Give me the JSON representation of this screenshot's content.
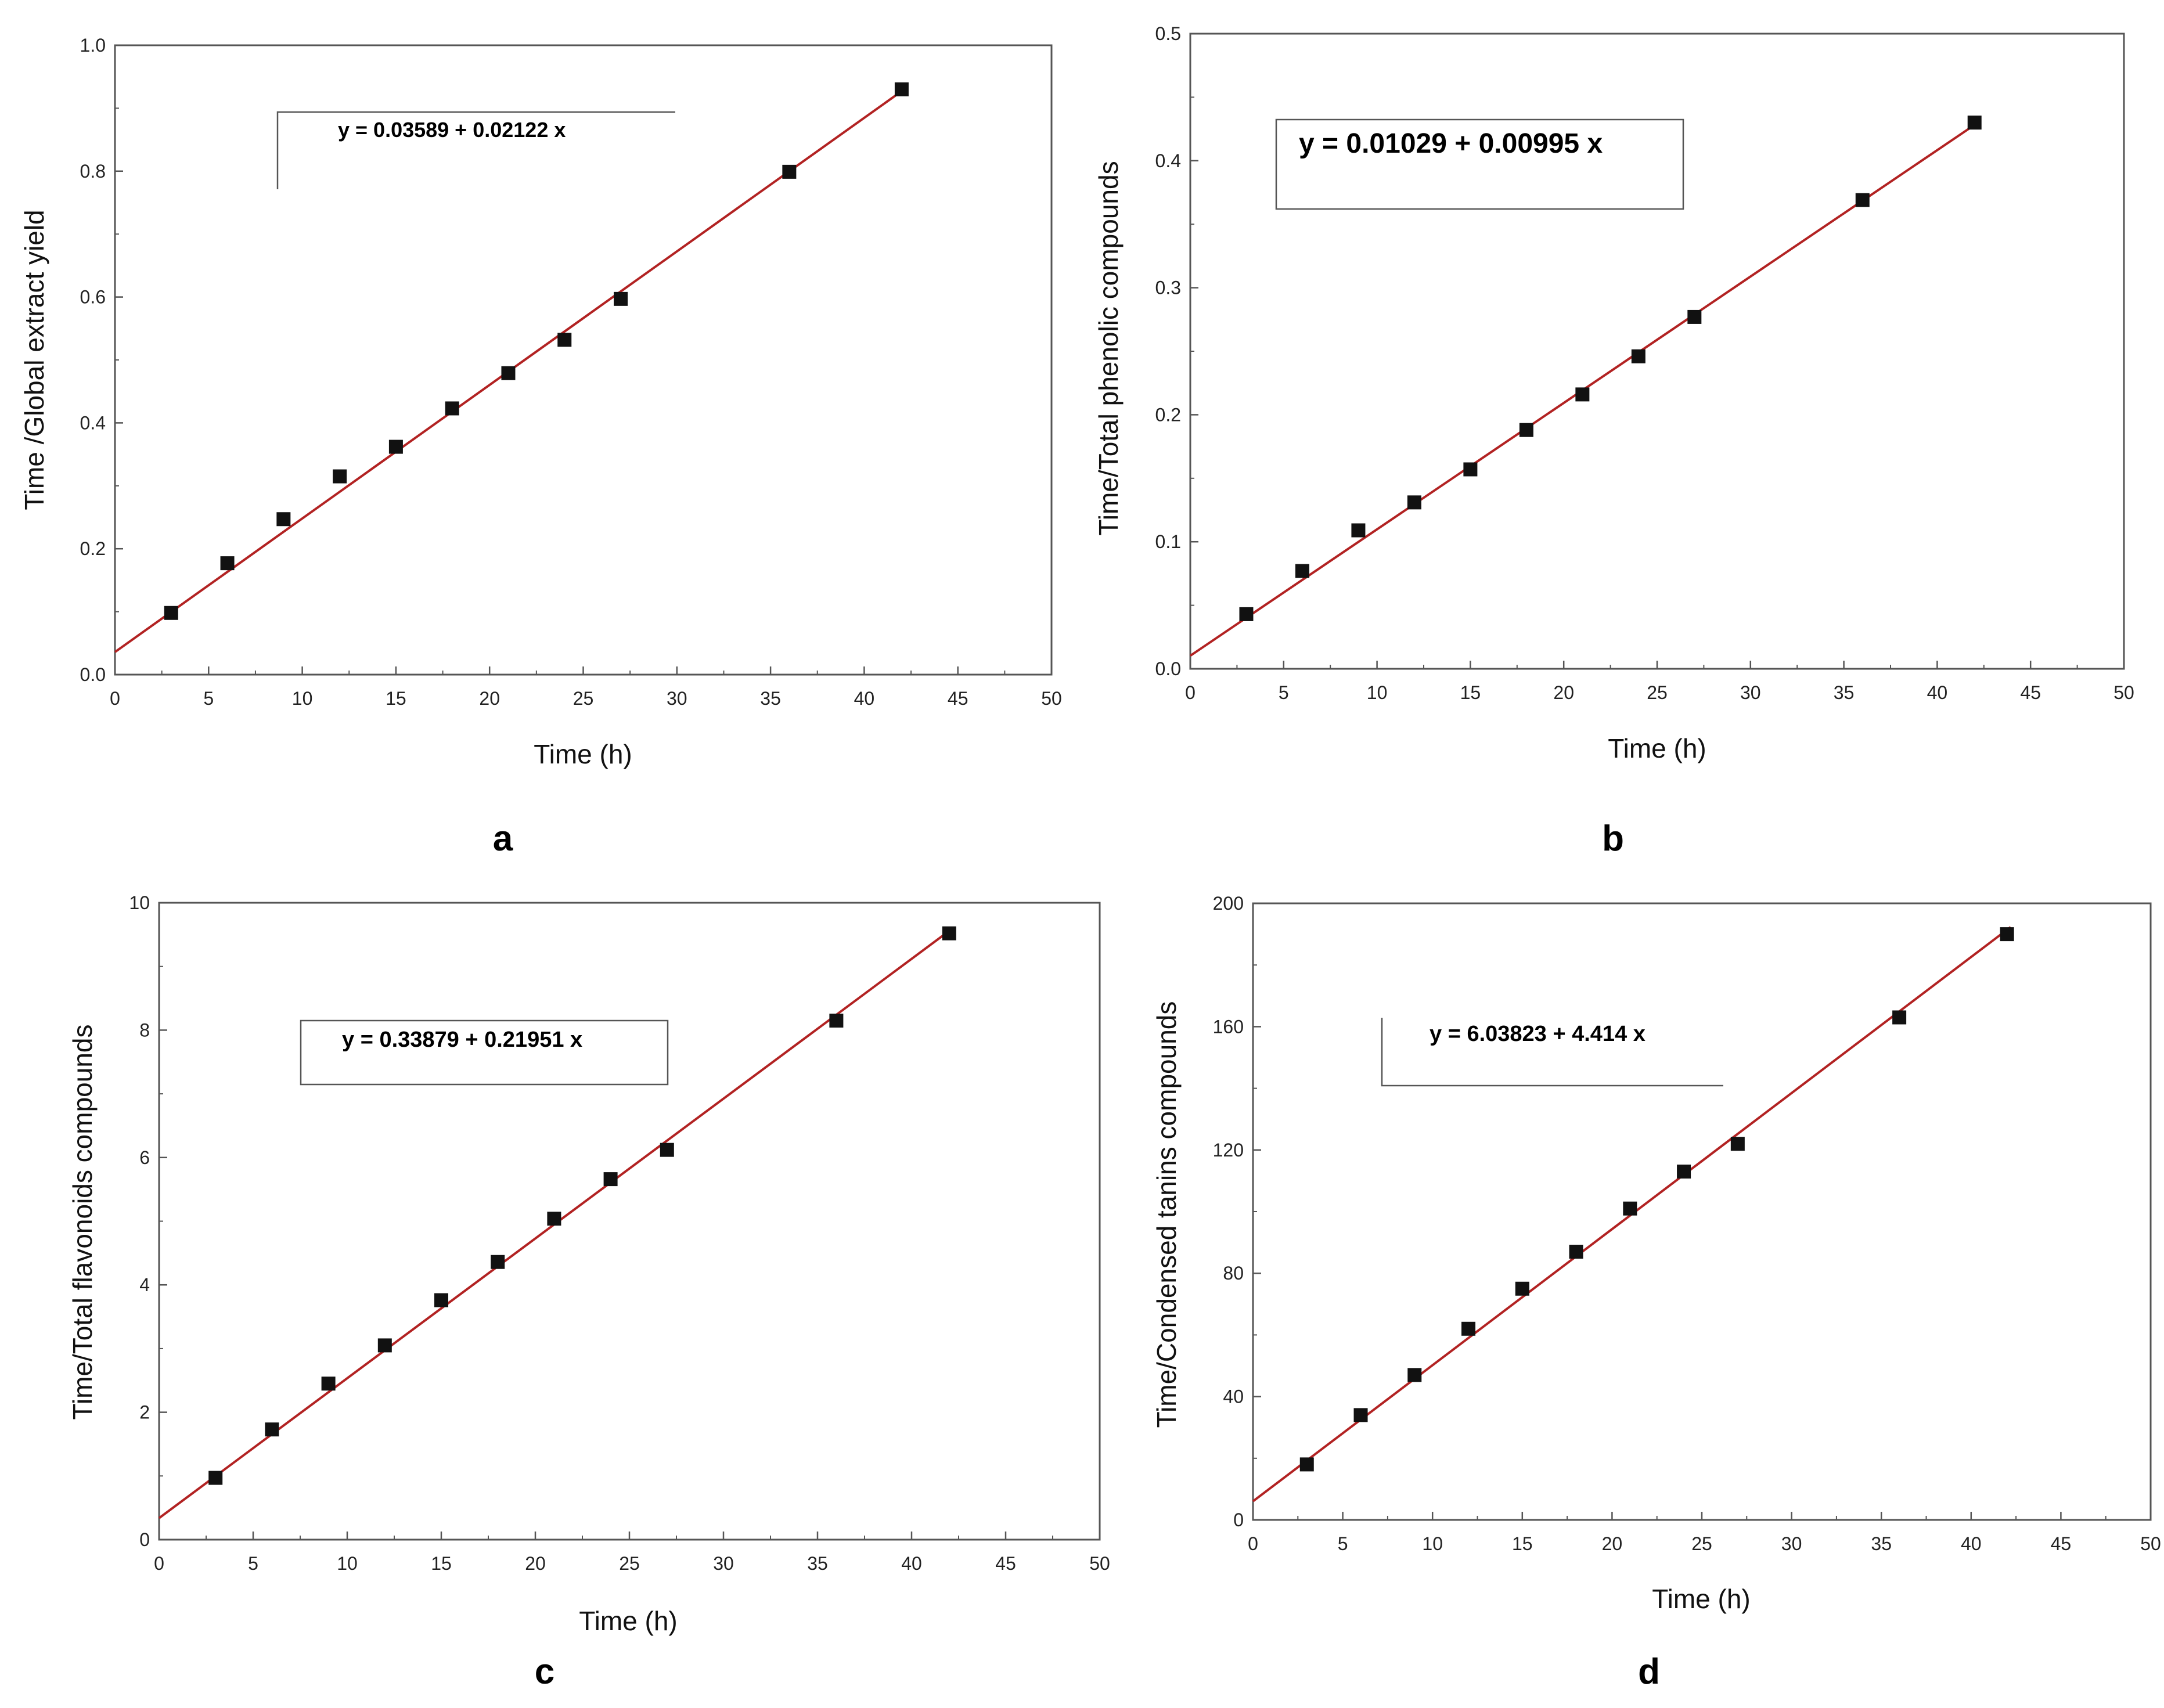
{
  "colors": {
    "fit_line": "#b22222",
    "marker": "#111111",
    "frame": "#555555"
  },
  "chart_data": [
    {
      "panel": "a",
      "type": "scatter",
      "title": "",
      "xlabel": "Time (h)",
      "ylabel": "Time /Global extract yield",
      "xlim": [
        0,
        50
      ],
      "ylim": [
        0,
        1.0
      ],
      "xticks": [
        "0",
        "5",
        "10",
        "15",
        "20",
        "25",
        "30",
        "35",
        "40",
        "45",
        "50"
      ],
      "yticks": [
        "0.0",
        "0.2",
        "0.4",
        "0.6",
        "0.8",
        "1.0"
      ],
      "series": [
        {
          "name": "data",
          "x": [
            3,
            6,
            9,
            12,
            15,
            18,
            21,
            24,
            27,
            36,
            42
          ],
          "y": [
            0.098,
            0.177,
            0.247,
            0.315,
            0.362,
            0.423,
            0.479,
            0.532,
            0.597,
            0.799,
            0.93
          ]
        }
      ],
      "fit": {
        "intercept": 0.03589,
        "slope": 0.02122,
        "x_range": [
          0,
          42.2
        ]
      },
      "equation": "y = 0.03589 + 0.02122 x",
      "legend_style": "bracket"
    },
    {
      "panel": "b",
      "type": "scatter",
      "title": "",
      "xlabel": "Time (h)",
      "ylabel": "Time/Total phenolic compounds",
      "xlim": [
        0,
        50
      ],
      "ylim": [
        0,
        0.5
      ],
      "xticks": [
        "0",
        "5",
        "10",
        "15",
        "20",
        "25",
        "30",
        "35",
        "40",
        "45",
        "50"
      ],
      "yticks": [
        "0.0",
        "0.1",
        "0.2",
        "0.3",
        "0.4",
        "0.5"
      ],
      "series": [
        {
          "name": "data",
          "x": [
            3,
            6,
            9,
            12,
            15,
            18,
            21,
            24,
            27,
            36,
            42
          ],
          "y": [
            0.043,
            0.077,
            0.109,
            0.131,
            0.157,
            0.188,
            0.216,
            0.246,
            0.277,
            0.369,
            0.43
          ]
        }
      ],
      "fit": {
        "intercept": 0.01029,
        "slope": 0.00995,
        "x_range": [
          0,
          42.2
        ]
      },
      "equation": "y = 0.01029 + 0.00995  x",
      "legend_style": "box"
    },
    {
      "panel": "c",
      "type": "scatter",
      "title": "",
      "xlabel": "Time (h)",
      "ylabel": "Time/Total flavonoids compounds",
      "xlim": [
        0,
        50
      ],
      "ylim": [
        0,
        10
      ],
      "xticks": [
        "0",
        "5",
        "10",
        "15",
        "20",
        "25",
        "30",
        "35",
        "40",
        "45",
        "50"
      ],
      "yticks": [
        "0",
        "2",
        "4",
        "6",
        "8",
        "10"
      ],
      "series": [
        {
          "name": "data",
          "x": [
            3,
            6,
            9,
            12,
            15,
            18,
            21,
            24,
            27,
            36,
            42
          ],
          "y": [
            0.97,
            1.73,
            2.45,
            3.05,
            3.76,
            4.36,
            5.04,
            5.66,
            6.12,
            8.15,
            9.52
          ]
        }
      ],
      "fit": {
        "intercept": 0.33879,
        "slope": 0.21951,
        "x_range": [
          0,
          42.2
        ]
      },
      "equation": "y = 0.33879 + 0.21951  x",
      "legend_style": "box"
    },
    {
      "panel": "d",
      "type": "scatter",
      "title": "",
      "xlabel": "Time (h)",
      "ylabel": "Time/Condensed tanins compounds",
      "xlim": [
        0,
        50
      ],
      "ylim": [
        0,
        200
      ],
      "xticks": [
        "0",
        "5",
        "10",
        "15",
        "20",
        "25",
        "30",
        "35",
        "40",
        "45",
        "50"
      ],
      "yticks": [
        "0",
        "40",
        "80",
        "120",
        "160",
        "200"
      ],
      "series": [
        {
          "name": "data",
          "x": [
            3,
            6,
            9,
            12,
            15,
            18,
            21,
            24,
            27,
            36,
            42
          ],
          "y": [
            18,
            34,
            47,
            62,
            75,
            87,
            101,
            113,
            122,
            163,
            190
          ]
        }
      ],
      "fit": {
        "intercept": 6.03823,
        "slope": 4.414,
        "x_range": [
          0,
          42.2
        ]
      },
      "equation": "y = 6.03823 + 4.414  x",
      "legend_style": "bracket"
    }
  ]
}
